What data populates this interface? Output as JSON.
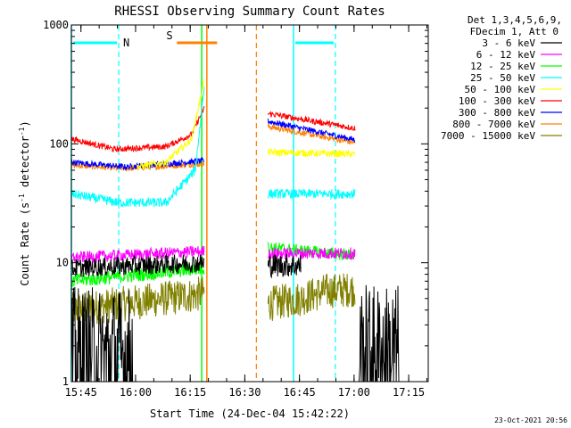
{
  "chart_data": {
    "type": "line",
    "title": "RHESSI Observing Summary Count Rates",
    "xlabel": "Start Time (24-Dec-04 15:42:22)",
    "ylabel": "Count Rate (s",
    "ylabel_sup1": "-1",
    "ylabel_mid": " detector",
    "ylabel_sup2": "-1",
    "ylabel_end": ")",
    "x_range_min": [
      0,
      98
    ],
    "y_scale": "log",
    "ylim": [
      1,
      1000
    ],
    "x_ticks": [
      {
        "min": 2.63,
        "label": "15:45"
      },
      {
        "min": 17.63,
        "label": "16:00"
      },
      {
        "min": 32.63,
        "label": "16:15"
      },
      {
        "min": 47.63,
        "label": "16:30"
      },
      {
        "min": 62.63,
        "label": "16:45"
      },
      {
        "min": 77.63,
        "label": "17:00"
      },
      {
        "min": 92.63,
        "label": "17:15"
      }
    ],
    "y_ticks": [
      {
        "value": 1,
        "label": "1"
      },
      {
        "value": 10,
        "label": "10"
      },
      {
        "value": 100,
        "label": "100"
      },
      {
        "value": 1000,
        "label": "1000"
      }
    ],
    "legend": {
      "header1": "Det 1,3,4,5,6,9,",
      "header2": "FDecim 1, Att 0",
      "placement": "right"
    },
    "series": [
      {
        "name": "3 - 6 keV",
        "color": "#000000",
        "segments": [
          {
            "x": [
              0,
              17
            ],
            "y": [
              1.6,
              1.6
            ],
            "noise": 0.6
          },
          {
            "x": [
              17,
              26
            ],
            "y": [
              1,
              1
            ],
            "noise": 0
          },
          {
            "x": [
              0,
              36.5
            ],
            "y": [
              9,
              10
            ],
            "noise": 0.08,
            "start": 16
          },
          {
            "x": [
              54,
              63
            ],
            "y": [
              9.5,
              9.5
            ],
            "noise": 0.1
          },
          {
            "x": [
              63,
              79
            ],
            "y": [
              1,
              1
            ],
            "noise": 0
          },
          {
            "x": [
              79,
              90
            ],
            "y": [
              1.7,
              1.7
            ],
            "noise": 0.6
          }
        ]
      },
      {
        "name": "6 - 12 keV",
        "color": "#ff00ff",
        "segments": [
          {
            "x": [
              0,
              36.5
            ],
            "y": [
              11,
              12.5
            ],
            "noise": 0.05
          },
          {
            "x": [
              54,
              78
            ],
            "y": [
              12,
              12
            ],
            "noise": 0.05
          }
        ]
      },
      {
        "name": "12 - 25 keV",
        "color": "#00ff00",
        "segments": [
          {
            "x": [
              0,
              36.5
            ],
            "y": [
              7,
              9
            ],
            "noise": 0.06
          },
          {
            "x": [
              54,
              78
            ],
            "y": [
              13.5,
              11.5
            ],
            "noise": 0.05
          }
        ]
      },
      {
        "name": "25 - 50 keV",
        "color": "#00ffff",
        "segments": [
          {
            "x": [
              0,
              13,
              26,
              34,
              36.5
            ],
            "y": [
              38,
              32,
              32,
              60,
              300
            ],
            "noise": 0.04
          },
          {
            "x": [
              54,
              78
            ],
            "y": [
              38,
              38
            ],
            "noise": 0.04
          }
        ]
      },
      {
        "name": "50 - 100 keV",
        "color": "#ffff00",
        "segments": [
          {
            "x": [
              18,
              26,
              33,
              36.5
            ],
            "y": [
              64,
              70,
              110,
              340
            ],
            "noise": 0.03
          },
          {
            "x": [
              54,
              78
            ],
            "y": [
              85,
              82
            ],
            "noise": 0.03
          }
        ]
      },
      {
        "name": "100 - 300 keV",
        "color": "#ff0000",
        "segments": [
          {
            "x": [
              0,
              12,
              26,
              33,
              36.5
            ],
            "y": [
              110,
              90,
              95,
              120,
              200
            ],
            "noise": 0.025
          },
          {
            "x": [
              54,
              78
            ],
            "y": [
              180,
              135
            ],
            "noise": 0.025
          }
        ]
      },
      {
        "name": "300 - 800 keV",
        "color": "#0000ff",
        "segments": [
          {
            "x": [
              0,
              15,
              36.5
            ],
            "y": [
              70,
              64,
              72
            ],
            "noise": 0.025
          },
          {
            "x": [
              54,
              78
            ],
            "y": [
              155,
              108
            ],
            "noise": 0.025
          }
        ]
      },
      {
        "name": "800 - 7000 keV",
        "color": "#ff8000",
        "segments": [
          {
            "x": [
              0,
              15,
              36.5
            ],
            "y": [
              66,
              62,
              68
            ],
            "noise": 0.025
          },
          {
            "x": [
              54,
              78
            ],
            "y": [
              140,
              102
            ],
            "noise": 0.025
          }
        ]
      },
      {
        "name": "7000 - 15000 keV",
        "color": "#808000",
        "segments": [
          {
            "x": [
              0,
              14,
              26,
              36.5
            ],
            "y": [
              4,
              4.5,
              5,
              5.5
            ],
            "noise": 0.15
          },
          {
            "x": [
              54,
              63,
              70,
              78
            ],
            "y": [
              4.5,
              5,
              5.8,
              6
            ],
            "noise": 0.15
          }
        ]
      }
    ],
    "annotations": {
      "night": {
        "label": "N",
        "color": "#00ffff",
        "spans": [
          [
            0,
            13
          ],
          [
            61,
            72.5
          ]
        ]
      },
      "saa": {
        "label": "S",
        "color": "#ff8000",
        "spans": [
          [
            28.5,
            40.5
          ]
        ]
      },
      "solid_lines": [
        {
          "x": 0,
          "color": "#00ffff"
        },
        {
          "x": 61,
          "color": "#00ffff"
        },
        {
          "x": 35.8,
          "color": "#00ff00"
        },
        {
          "x": 37.2,
          "color": "#ff8000"
        }
      ],
      "dashed_lines": [
        {
          "x": 13,
          "color": "#00ffff"
        },
        {
          "x": 72.5,
          "color": "#00ffff"
        },
        {
          "x": 50.8,
          "color": "#ff8000"
        }
      ]
    },
    "timestamp": "23-Oct-2021 20:56"
  }
}
